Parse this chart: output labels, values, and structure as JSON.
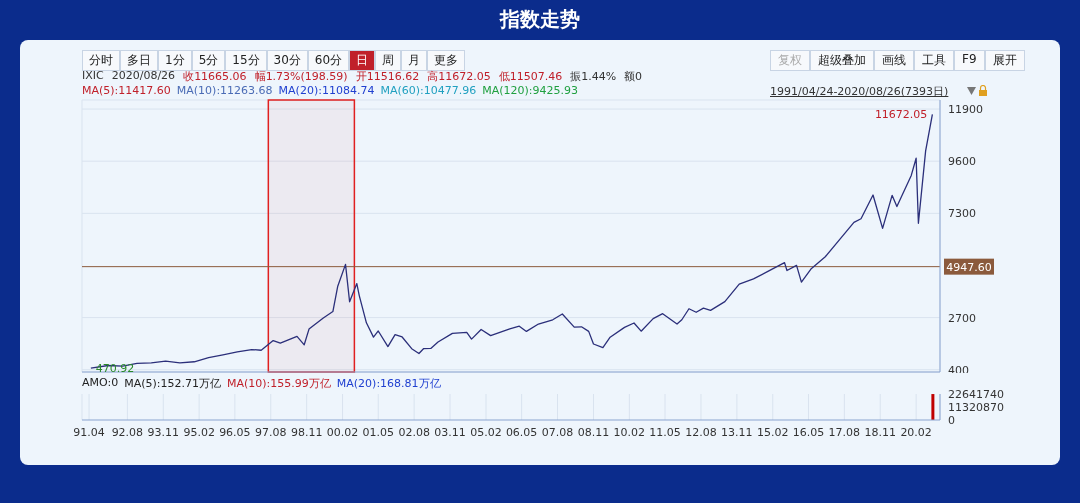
{
  "chart_data": [
    {
      "type": "line",
      "title": "指数走势",
      "annotations": [
        "分时",
        "多日",
        "1分",
        "5分",
        "15分",
        "30分",
        "60分",
        "日",
        "周",
        "月",
        "更多",
        "复权",
        "超级叠加",
        "画线",
        "工具",
        "F9",
        "展开",
        "IXIC",
        "2020/08/26",
        "收11665.06",
        "幅1.73%(198.59)",
        "开11516.62",
        "高11672.05",
        "低11507.46",
        "振1.44%",
        "额0",
        "MA(5):11417.60",
        "MA(10):11263.68",
        "MA(20):11084.74",
        "MA(60):10477.96",
        "MA(120):9425.93",
        "1991/04/24-2020/08/26(7393日)",
        {
          "text": "11672.05",
          "x": "2020-08-26",
          "y": 11672.05
        },
        {
          "text": "470.92",
          "x": "1991-04-24",
          "y": 470.92
        }
      ],
      "x": [
        "1991-04-24",
        "1991-12",
        "1992-06",
        "1992-12",
        "1993-06",
        "1993-12",
        "1994-06",
        "1994-12",
        "1995-06",
        "1995-12",
        "1996-06",
        "1996-12",
        "1997-04",
        "1997-09",
        "1997-12",
        "1998-07",
        "1998-10",
        "1998-12",
        "1999-06",
        "1999-10",
        "1999-12",
        "2000-03-10",
        "2000-05",
        "2000-08",
        "2000-09",
        "2000-12",
        "2001-03",
        "2001-05",
        "2001-09",
        "2001-12",
        "2002-03",
        "2002-07",
        "2002-10",
        "2002-12",
        "2003-03",
        "2003-06",
        "2003-12",
        "2004-06",
        "2004-08",
        "2004-12",
        "2005-04",
        "2005-12",
        "2006-04",
        "2006-07",
        "2006-12",
        "2007-06",
        "2007-10",
        "2008-03",
        "2008-06",
        "2008-09",
        "2008-11",
        "2009-03",
        "2009-06",
        "2009-12",
        "2010-04",
        "2010-07",
        "2010-12",
        "2011-04",
        "2011-10",
        "2011-12",
        "2012-03",
        "2012-06",
        "2012-09",
        "2012-12",
        "2013-06",
        "2013-12",
        "2014-06",
        "2014-12",
        "2015-07",
        "2015-08",
        "2015-12",
        "2016-02",
        "2016-06",
        "2016-12",
        "2017-06",
        "2017-12",
        "2018-03",
        "2018-08",
        "2018-12",
        "2019-04",
        "2019-06",
        "2019-12",
        "2020-02",
        "2020-03",
        "2020-06",
        "2020-08-26"
      ],
      "series": [
        {
          "color": "#2b2f7a",
          "values": [
            471,
            586,
            563,
            677,
            704,
            777,
            706,
            752,
            933,
            1052,
            1185,
            1291,
            1260,
            1686,
            1570,
            1872,
            1500,
            2193,
            2686,
            2966,
            4069,
            5048,
            3400,
            4200,
            3673,
            2470,
            1840,
            2110,
            1423,
            1950,
            1845,
            1328,
            1114,
            1335,
            1341,
            1622,
            2003,
            2047,
            1752,
            2175,
            1904,
            2205,
            2322,
            2091,
            2415,
            2603,
            2859,
            2279,
            2293,
            2092,
            1536,
            1377,
            1835,
            2269,
            2461,
            2101,
            2653,
            2873,
            2415,
            2605,
            3091,
            2935,
            3116,
            3019,
            3403,
            4176,
            4408,
            4736,
            5128,
            4776,
            5007,
            4267,
            4843,
            5383,
            6140,
            6903,
            7063,
            8109,
            6635,
            8095,
            7600,
            8972,
            9731,
            6860,
            10058,
            11665
          ]
        }
      ],
      "xlim": [
        "1991-01",
        "2020-12"
      ],
      "xticks": [
        {
          "value": "1991-04",
          "label": null
        },
        {
          "value": "1992-08",
          "label": null
        },
        {
          "value": "1993-11",
          "label": null
        },
        {
          "value": "1995-02",
          "label": null
        },
        {
          "value": "1996-05",
          "label": null
        },
        {
          "value": "1997-08",
          "label": null
        },
        {
          "value": "1998-11",
          "label": null
        },
        {
          "value": "2000-02",
          "label": null
        },
        {
          "value": "2001-05",
          "label": null
        },
        {
          "value": "2002-08",
          "label": null
        },
        {
          "value": "2003-11",
          "label": null
        },
        {
          "value": "2005-02",
          "label": null
        },
        {
          "value": "2006-05",
          "label": null
        },
        {
          "value": "2007-08",
          "label": null
        },
        {
          "value": "2008-11",
          "label": null
        },
        {
          "value": "2010-02",
          "label": null
        },
        {
          "value": "2011-05",
          "label": null
        },
        {
          "value": "2012-08",
          "label": null
        },
        {
          "value": "2013-11",
          "label": null
        },
        {
          "value": "2015-02",
          "label": null
        },
        {
          "value": "2016-05",
          "label": null
        },
        {
          "value": "2017-08",
          "label": null
        },
        {
          "value": "2018-11",
          "label": null
        },
        {
          "value": "2020-02",
          "label": null
        }
      ],
      "ylim": [
        300,
        12300
      ],
      "yticks": [
        400,
        2700,
        7300,
        9600,
        11900
      ],
      "ref_lines": [
        {
          "axis": "y",
          "value": 4947.6,
          "label": "4947.60",
          "color": "#8b5a3c"
        }
      ],
      "bands": [
        {
          "axis": "x",
          "from": "1997-07",
          "to": "2000-07",
          "color": "#e02020"
        }
      ],
      "grid": true,
      "tick_labels": "y",
      "marker": "none"
    },
    {
      "type": "bar",
      "annotations": [
        "AMO:0",
        "MA(5):152.71万亿",
        "MA(10):155.99万亿",
        "MA(20):168.81万亿"
      ],
      "x": [
        "2020-08-26"
      ],
      "series": [
        {
          "color": "#c00000",
          "values": [
            22600000
          ]
        }
      ],
      "xlim": [
        "1991-01",
        "2020-12"
      ],
      "xticks": [
        {
          "value": "1991-04",
          "label": "91.04"
        },
        {
          "value": "1992-08",
          "label": "92.08"
        },
        {
          "value": "1993-11",
          "label": "93.11"
        },
        {
          "value": "1995-02",
          "label": "95.02"
        },
        {
          "value": "1996-05",
          "label": "96.05"
        },
        {
          "value": "1997-08",
          "label": "97.08"
        },
        {
          "value": "1998-11",
          "label": "98.11"
        },
        {
          "value": "2000-02",
          "label": "00.02"
        },
        {
          "value": "2001-05",
          "label": "01.05"
        },
        {
          "value": "2002-08",
          "label": "02.08"
        },
        {
          "value": "2003-11",
          "label": "03.11"
        },
        {
          "value": "2005-02",
          "label": "05.02"
        },
        {
          "value": "2006-05",
          "label": "06.05"
        },
        {
          "value": "2007-08",
          "label": "07.08"
        },
        {
          "value": "2008-11",
          "label": "08.11"
        },
        {
          "value": "2010-02",
          "label": "10.02"
        },
        {
          "value": "2011-05",
          "label": "11.05"
        },
        {
          "value": "2012-08",
          "label": "12.08"
        },
        {
          "value": "2013-11",
          "label": "13.11"
        },
        {
          "value": "2015-02",
          "label": "15.02"
        },
        {
          "value": "2016-05",
          "label": "16.05"
        },
        {
          "value": "2017-08",
          "label": "17.08"
        },
        {
          "value": "2018-11",
          "label": "18.11"
        },
        {
          "value": "2020-02",
          "label": "20.02"
        }
      ],
      "ylim": [
        0,
        22641740
      ],
      "yticks": [
        0,
        11320870,
        22641740
      ],
      "grid": "x"
    }
  ]
}
